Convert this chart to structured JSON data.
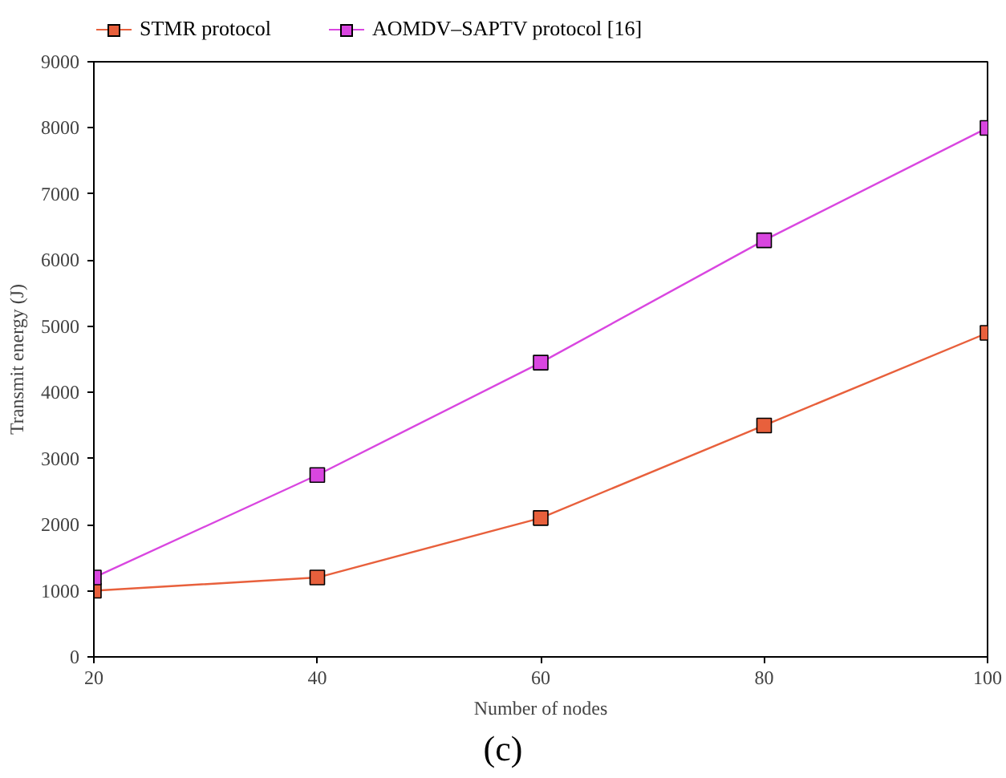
{
  "chart_data": {
    "type": "line",
    "xlabel": "Number of nodes",
    "ylabel": "Transmit energy (J)",
    "x": [
      20,
      40,
      60,
      80,
      100
    ],
    "series": [
      {
        "name": "STMR protocol",
        "color": "#e8603c",
        "values": [
          1000,
          1200,
          2100,
          3500,
          4900
        ]
      },
      {
        "name": "AOMDV–SAPTV protocol [16]",
        "color": "#d946e0",
        "values": [
          1200,
          2750,
          4450,
          6300,
          8000
        ]
      }
    ],
    "xlim": [
      20,
      100
    ],
    "xticks": [
      20,
      40,
      60,
      80,
      100
    ],
    "ylim": [
      0,
      9000
    ],
    "yticks": [
      0,
      1000,
      2000,
      3000,
      4000,
      5000,
      6000,
      7000,
      8000,
      9000
    ],
    "grid": false,
    "legend": "top left",
    "marker": "square",
    "line_style": "solid",
    "annotations": [
      "(c)"
    ]
  }
}
